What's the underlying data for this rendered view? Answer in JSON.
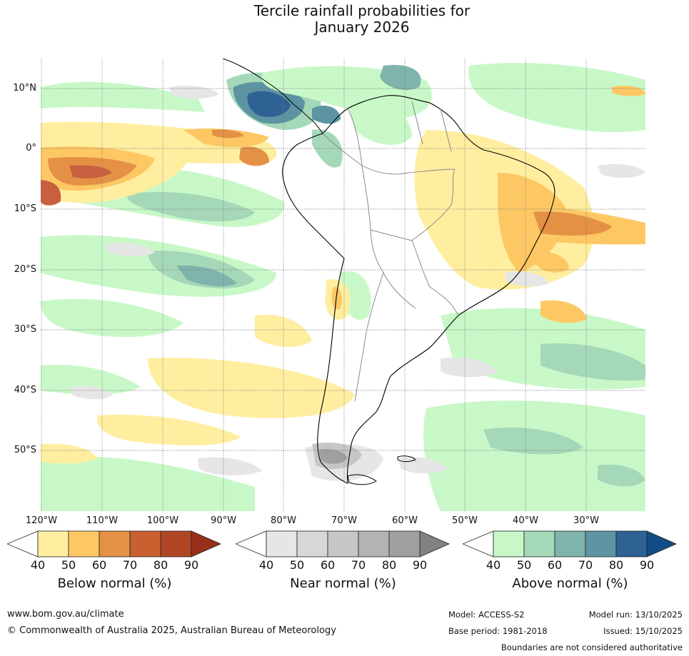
{
  "title": {
    "line1": "Tercile rainfall probabilities for",
    "line2": "January 2026"
  },
  "map": {
    "region": "South America",
    "latitude_labels": [
      "10°N",
      "0°",
      "10°S",
      "20°S",
      "30°S",
      "40°S",
      "50°S"
    ],
    "longitude_labels": [
      "120°W",
      "110°W",
      "100°W",
      "90°W",
      "80°W",
      "70°W",
      "60°W",
      "50°W",
      "40°W",
      "30°W"
    ],
    "colors": {
      "below": [
        "#ffeea0",
        "#fdc864",
        "#e49146",
        "#c8602f",
        "#b04525",
        "#96301a"
      ],
      "near": [
        "#e6e6e6",
        "#d7d7d7",
        "#c6c6c6",
        "#b3b3b3",
        "#a0a0a0",
        "#828282"
      ],
      "above": [
        "#c8f8c8",
        "#a5d8b8",
        "#7fb4ac",
        "#5c94a2",
        "#2f6294",
        "#114d86"
      ]
    }
  },
  "legends": [
    {
      "id": "below",
      "title": "Below normal (%)",
      "ticks": [
        "40",
        "50",
        "60",
        "70",
        "80",
        "90"
      ]
    },
    {
      "id": "near",
      "title": "Near normal (%)",
      "ticks": [
        "40",
        "50",
        "60",
        "70",
        "80",
        "90"
      ]
    },
    {
      "id": "above",
      "title": "Above normal (%)",
      "ticks": [
        "40",
        "50",
        "60",
        "70",
        "80",
        "90"
      ]
    }
  ],
  "footer": {
    "website": "www.bom.gov.au/climate",
    "copyright": "© Commonwealth of Australia 2025, Australian Bureau of Meteorology",
    "model": "Model: ACCESS-S2",
    "base_period": "Base period: 1981-2018",
    "model_run": "Model run: 13/10/2025",
    "issued": "Issued: 15/10/2025",
    "disclaimer": "Boundaries are not considered authoritative"
  }
}
